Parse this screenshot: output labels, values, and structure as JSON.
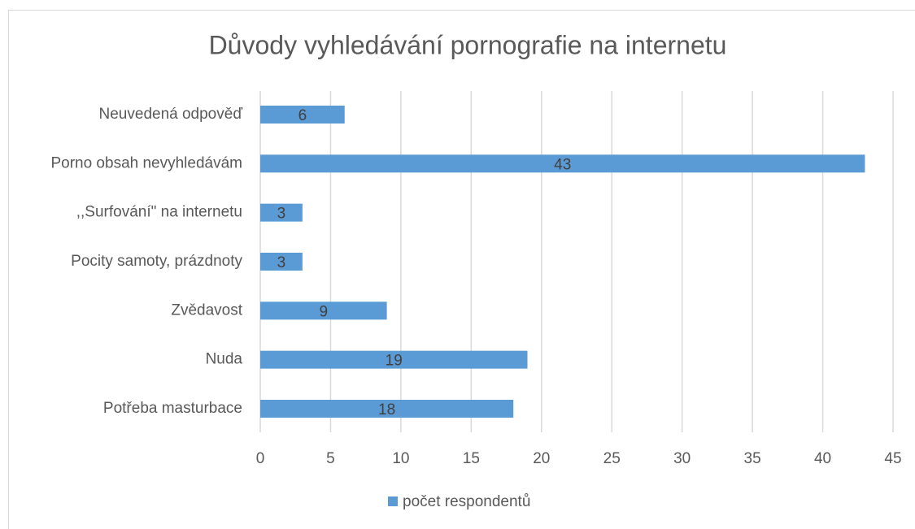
{
  "chart_data": {
    "type": "hbar",
    "title": "Důvody vyhledávání pornografie na internetu",
    "categories": [
      "Neuvedená odpověď",
      "Porno obsah nevyhledávám",
      ",,Surfování\" na internetu",
      "Pocity samoty, prázdnoty",
      "Zvědavost",
      "Nuda",
      "Potřeba masturbace"
    ],
    "series": [
      {
        "name": "počet respondentů",
        "color": "#5b9bd5",
        "values": [
          6,
          43,
          3,
          3,
          9,
          19,
          18
        ]
      }
    ],
    "xlim": [
      0,
      45
    ],
    "xticks": [
      0,
      5,
      10,
      15,
      20,
      25,
      30,
      35,
      40,
      45
    ],
    "grid": true,
    "legend": "bottom"
  }
}
